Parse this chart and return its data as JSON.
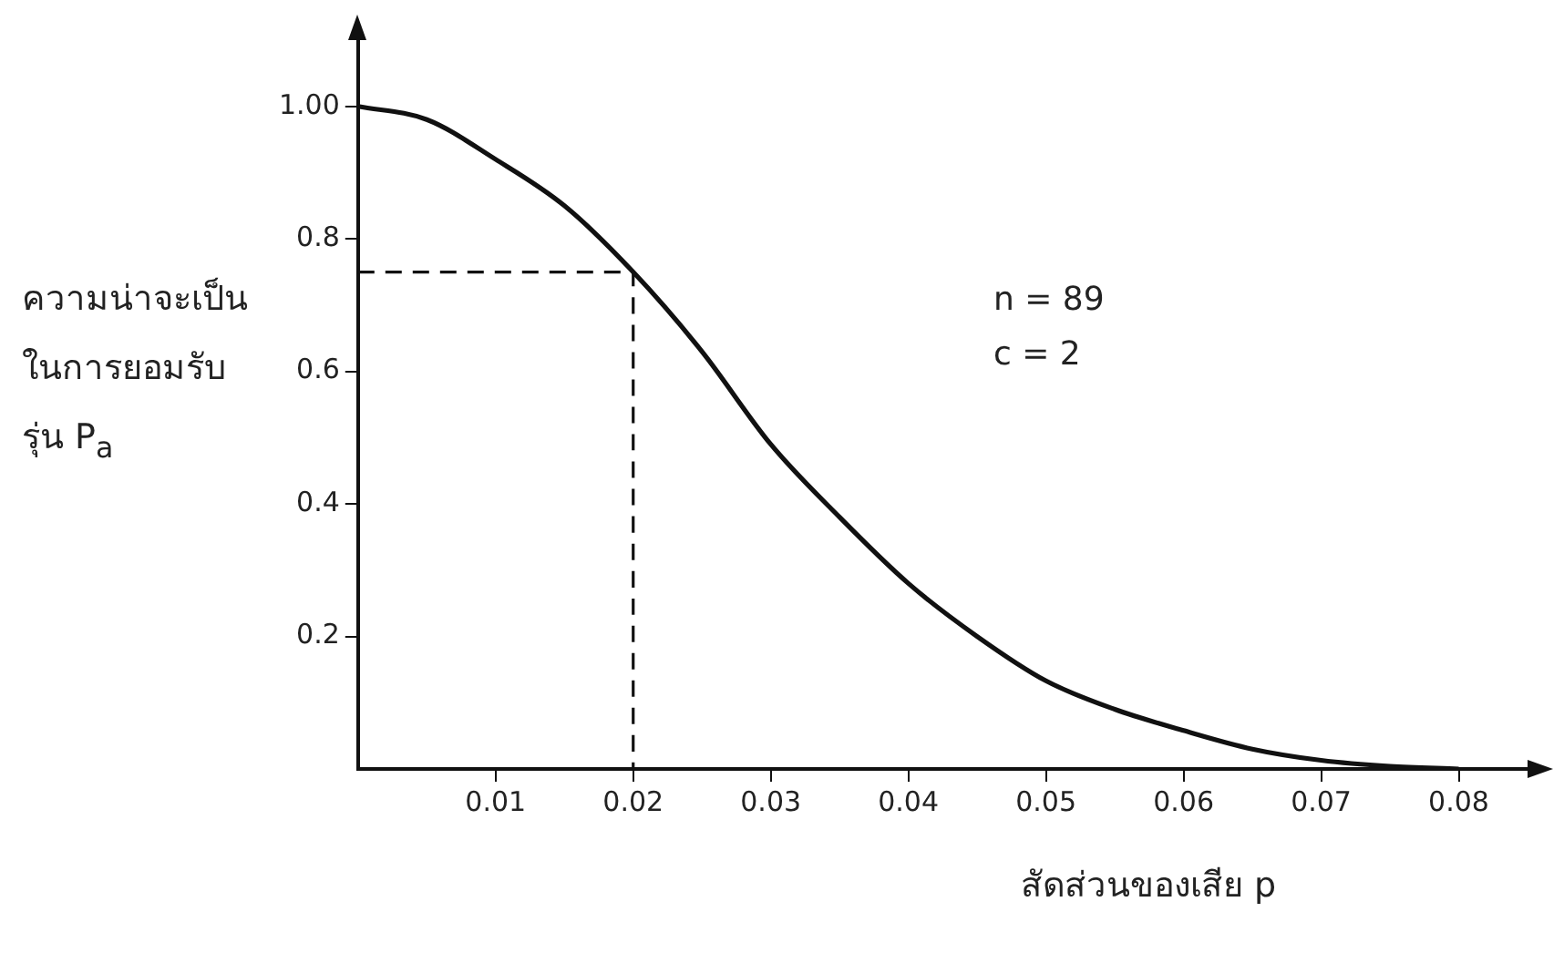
{
  "chart_data": {
    "type": "line",
    "xlabel": "สัดส่วนของเสีย p",
    "ylabel": "ความน่าจะเป็น\nในการยอมรับ\nรุ่น P$_{a}$",
    "annotations": [
      "n = 89",
      "c = 2"
    ],
    "xlim": [
      0,
      0.085
    ],
    "ylim": [
      0,
      1.1
    ],
    "xticks": [
      0.01,
      0.02,
      0.03,
      0.04,
      0.05,
      0.06,
      0.07,
      0.08
    ],
    "yticks": [
      0.2,
      0.4,
      0.6,
      0.8,
      {
        "value": 1,
        "label": "1.00"
      }
    ],
    "grid": false,
    "legend": false,
    "marker": "none",
    "series": [
      {
        "color": "#111111",
        "line_style": "solid",
        "x": [
          0,
          0.005,
          0.01,
          0.015,
          0.02,
          0.025,
          0.03,
          0.035,
          0.04,
          0.045,
          0.05,
          0.055,
          0.06,
          0.065,
          0.07,
          0.075,
          0.08
        ],
        "values": [
          1,
          0.98,
          0.92,
          0.85,
          0.75,
          0.63,
          0.49,
          0.38,
          0.28,
          0.2,
          0.133,
          0.09,
          0.058,
          0.03,
          0.013,
          0.004,
          0
        ]
      },
      {
        "color": "#111111",
        "line_style": "dashed",
        "x": [
          0,
          0.02,
          0.02
        ],
        "values": [
          0.75,
          0.75,
          0
        ]
      }
    ]
  }
}
